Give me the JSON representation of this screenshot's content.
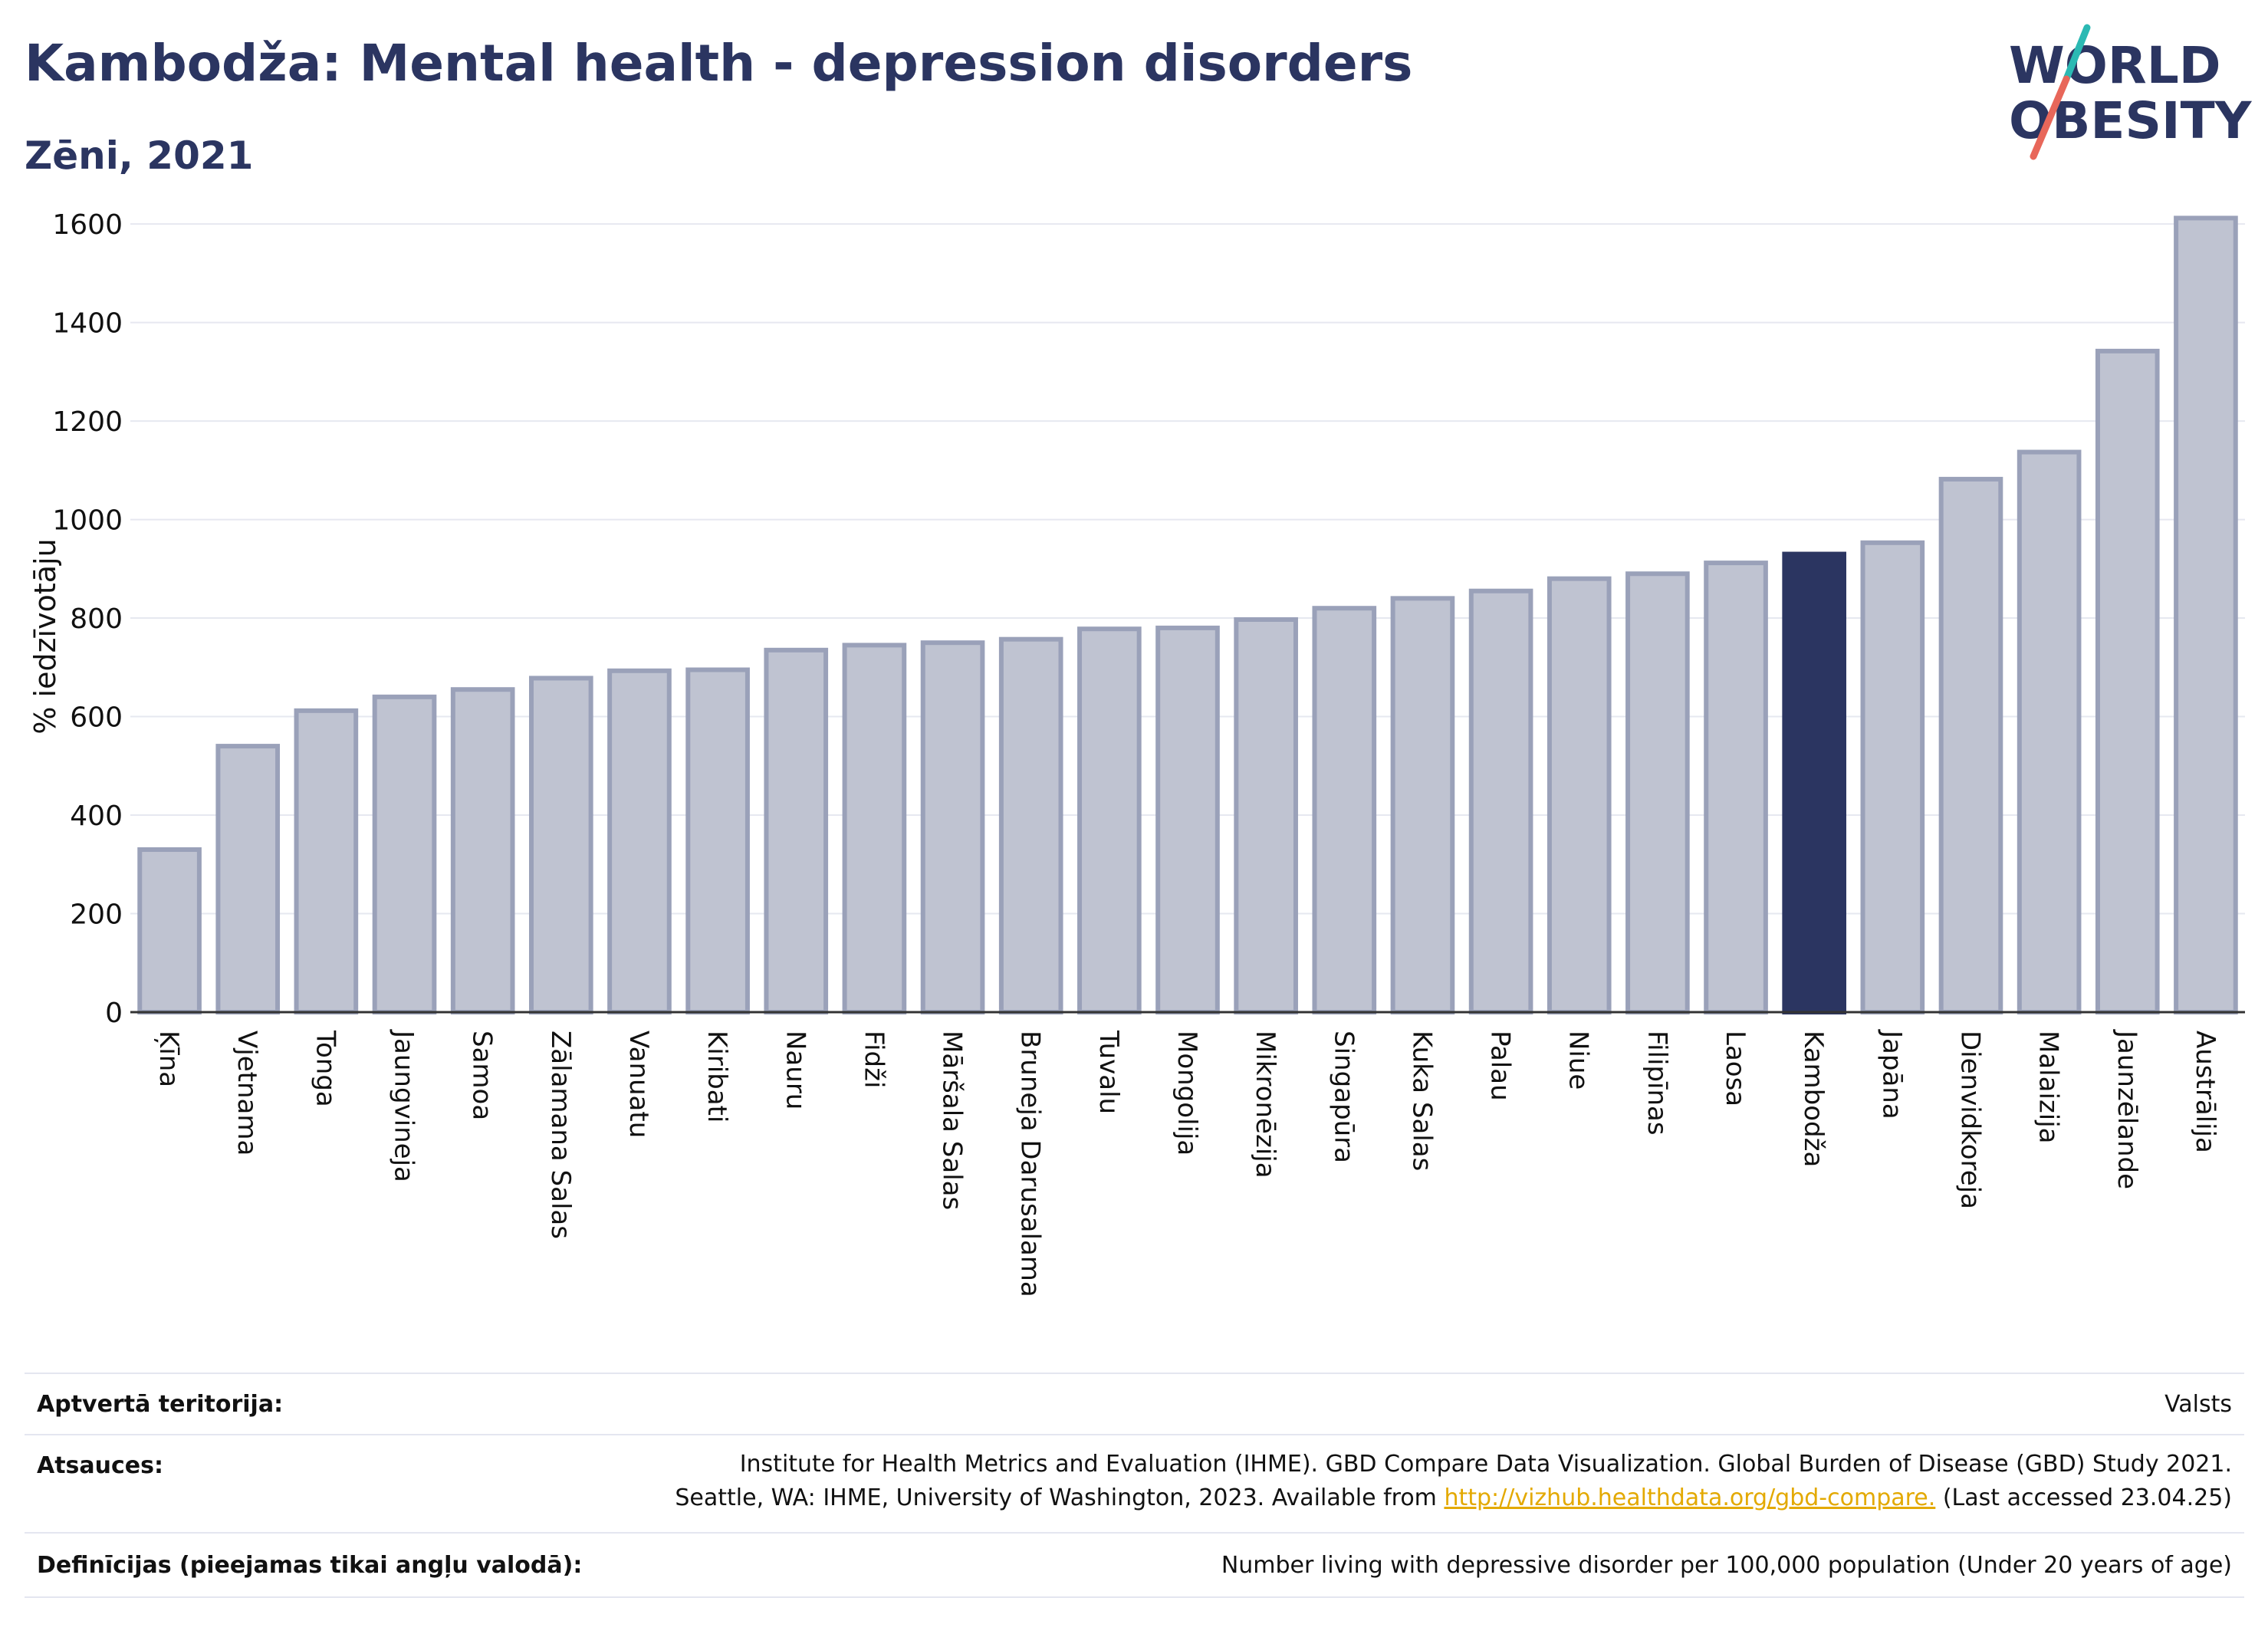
{
  "header": {
    "title": "Kambodža: Mental health - depression disorders",
    "subtitle": "Zēni, 2021"
  },
  "logo": {
    "line1": "WORLD",
    "line2": "OBESITY",
    "text_color": "#2b3561",
    "slash_colors": [
      "#2bb9b3",
      "#e8675a"
    ]
  },
  "chart_data": {
    "type": "bar",
    "ylabel": "% iedzīvotāju",
    "xlabel": "",
    "ylim": [
      0,
      1650
    ],
    "yticks": [
      0,
      200,
      400,
      600,
      800,
      1000,
      1200,
      1400,
      1600
    ],
    "grid": true,
    "highlight": "Kambodža",
    "bar_color": "#bfc3d1",
    "bar_border_color": "#9aa1b9",
    "highlight_color": "#2b3561",
    "categories": [
      "Ķīna",
      "Vjetnama",
      "Tonga",
      "Jaungvineja",
      "Samoa",
      "Zālamana Salas",
      "Vanuatu",
      "Kiribati",
      "Nauru",
      "Fidži",
      "Māršala Salas",
      "Bruneja Darusalama",
      "Tuvalu",
      "Mongolija",
      "Mikronēzija",
      "Singapūra",
      "Kuka Salas",
      "Palau",
      "Niue",
      "Filipīnas",
      "Laosa",
      "Kambodža",
      "Japāna",
      "Dienvidkoreja",
      "Malaizija",
      "Jaunzēlande",
      "Austrālija"
    ],
    "values": [
      330,
      540,
      612,
      640,
      655,
      678,
      693,
      695,
      735,
      745,
      750,
      757,
      778,
      780,
      797,
      820,
      840,
      855,
      880,
      890,
      912,
      930,
      953,
      1082,
      1137,
      1342,
      1612
    ]
  },
  "footer": {
    "coverage_label": "Aptvertā teritorija:",
    "coverage_value": "Valsts",
    "sources_label": "Atsauces:",
    "sources_line1": "Institute for Health Metrics and Evaluation (IHME). GBD Compare Data Visualization. Global Burden of Disease (GBD) Study 2021.",
    "sources_line2_prefix": "Seattle, WA: IHME, University of Washington, 2023. Available from ",
    "sources_link": "http://vizhub.healthdata.org/gbd-compare.",
    "sources_line2_suffix": " (Last accessed 23.04.25)",
    "definitions_label": "Definīcijas (pieejamas tikai angļu valodā):",
    "definitions_value": "Number living with depressive disorder per 100,000 population (Under 20 years of age)"
  }
}
